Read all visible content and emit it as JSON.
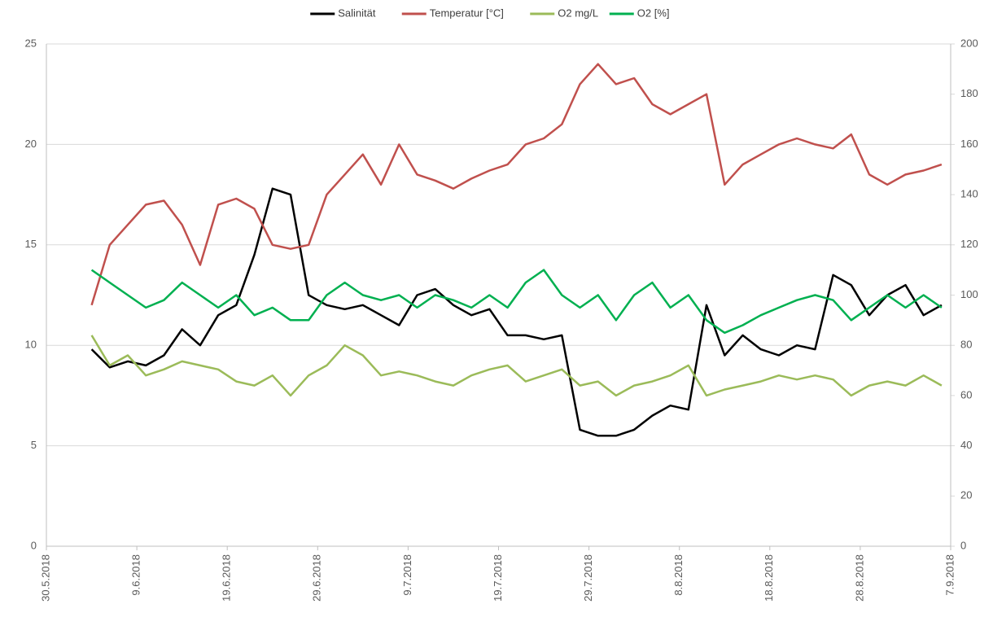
{
  "chart_data": {
    "type": "line",
    "x": [
      "4.6.2018",
      "6.6.2018",
      "8.6.2018",
      "10.6.2018",
      "12.6.2018",
      "14.6.2018",
      "16.6.2018",
      "18.6.2018",
      "20.6.2018",
      "22.6.2018",
      "24.6.2018",
      "26.6.2018",
      "28.6.2018",
      "30.6.2018",
      "2.7.2018",
      "4.7.2018",
      "6.7.2018",
      "8.7.2018",
      "10.7.2018",
      "12.7.2018",
      "14.7.2018",
      "16.7.2018",
      "18.7.2018",
      "20.7.2018",
      "22.7.2018",
      "24.7.2018",
      "26.7.2018",
      "28.7.2018",
      "30.7.2018",
      "1.8.2018",
      "3.8.2018",
      "5.8.2018",
      "7.8.2018",
      "9.8.2018",
      "11.8.2018",
      "13.8.2018",
      "15.8.2018",
      "17.8.2018",
      "19.8.2018",
      "21.8.2018",
      "23.8.2018",
      "25.8.2018",
      "27.8.2018",
      "29.8.2018",
      "31.8.2018",
      "2.9.2018",
      "4.9.2018",
      "6.9.2018"
    ],
    "series": [
      {
        "name": "Salinität",
        "color": "#000000",
        "values": [
          9.8,
          8.9,
          9.2,
          9.0,
          9.5,
          10.8,
          10.0,
          11.5,
          12.0,
          14.5,
          17.8,
          17.5,
          12.5,
          12,
          11.8,
          12,
          11.5,
          11.0,
          12.5,
          12.8,
          12,
          11.5,
          11.8,
          10.5,
          10.5,
          10.3,
          10.5,
          5.8,
          5.5,
          5.5,
          5.8,
          6.5,
          7.0,
          6.8,
          12,
          9.5,
          10.5,
          9.8,
          9.5,
          10,
          9.8,
          13.5,
          13,
          11.5,
          12.5,
          13,
          11.5,
          12
        ]
      },
      {
        "name": "Temperatur [°C]",
        "color": "#c0504d",
        "values": [
          12,
          15,
          16,
          17,
          17.2,
          16,
          14,
          17,
          17.3,
          16.8,
          15,
          14.8,
          15,
          17.5,
          18.5,
          19.5,
          18,
          20,
          18.5,
          18.2,
          17.8,
          18.3,
          18.7,
          19,
          20,
          20.3,
          21,
          23,
          24,
          23,
          23.3,
          22,
          21.5,
          22,
          22.5,
          18,
          19,
          19.5,
          20,
          20.3,
          20,
          19.8,
          20.5,
          18.5,
          18,
          18.5,
          18.7,
          19
        ]
      },
      {
        "name": "O2 mg/L",
        "color": "#9bbb59",
        "values": [
          10.5,
          9,
          9.5,
          8.5,
          8.8,
          9.2,
          9,
          8.8,
          8.2,
          8,
          8.5,
          7.5,
          8.5,
          9,
          10,
          9.5,
          8.5,
          8.7,
          8.5,
          8.2,
          8,
          8.5,
          8.8,
          9,
          8.2,
          8.5,
          8.8,
          8,
          8.2,
          7.5,
          8,
          8.2,
          8.5,
          9,
          7.5,
          7.8,
          8,
          8.2,
          8.5,
          8.3,
          8.5,
          8.3,
          7.5,
          8,
          8.2,
          8,
          8.5,
          8
        ]
      },
      {
        "name": "O2 [%]",
        "color": "#00b050",
        "axis": "y2",
        "values": [
          110,
          105,
          100,
          95,
          98,
          105,
          100,
          95,
          100,
          92,
          95,
          90,
          90,
          100,
          105,
          100,
          98,
          100,
          95,
          100,
          98,
          95,
          100,
          95,
          105,
          110,
          100,
          95,
          100,
          90,
          100,
          105,
          95,
          100,
          90,
          85,
          88,
          92,
          95,
          98,
          100,
          98,
          90,
          95,
          100,
          95,
          100,
          95
        ]
      }
    ],
    "xlim": [
      "30.5.2018",
      "7.9.2018"
    ],
    "xticks": [
      "30.5.2018",
      "9.6.2018",
      "19.6.2018",
      "29.6.2018",
      "9.7.2018",
      "19.7.2018",
      "29.7.2018",
      "8.8.2018",
      "18.8.2018",
      "28.8.2018",
      "7.9.2018"
    ],
    "ylim": [
      0,
      25
    ],
    "yticks": [
      0,
      5,
      10,
      15,
      20,
      25
    ],
    "y2lim": [
      0,
      200
    ],
    "y2ticks": [
      0,
      20,
      40,
      60,
      80,
      100,
      120,
      140,
      160,
      180,
      200
    ],
    "grid": true,
    "legend": "top"
  }
}
